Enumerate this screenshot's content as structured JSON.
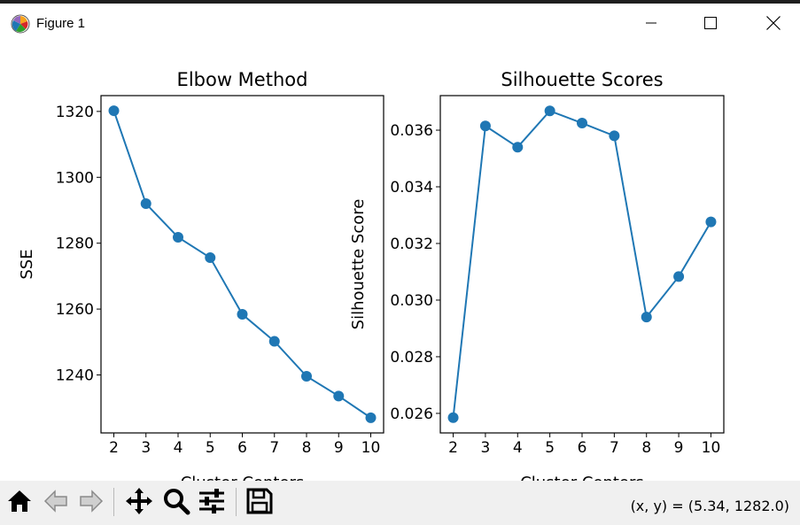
{
  "window": {
    "title": "Figure 1",
    "app_icon": "matplotlib-icon",
    "controls": [
      "minimize-icon",
      "maximize-icon",
      "close-icon"
    ]
  },
  "chart_data": [
    {
      "type": "line",
      "title": "Elbow Method",
      "xlabel": "Cluster Centers",
      "ylabel": "SSE",
      "x": [
        2,
        3,
        4,
        5,
        6,
        7,
        8,
        9,
        10
      ],
      "y": [
        1320.2,
        1292.0,
        1281.8,
        1275.6,
        1258.4,
        1250.2,
        1239.6,
        1233.6,
        1227.0
      ],
      "xticks": [
        "2",
        "3",
        "4",
        "5",
        "6",
        "7",
        "8",
        "9",
        "10"
      ],
      "yticks": [
        "1240",
        "1260",
        "1280",
        "1300",
        "1320"
      ],
      "xlim": [
        1.6,
        10.4
      ],
      "ylim": [
        1222.4,
        1324.8
      ],
      "marker": "circle",
      "color": "#1f77b4",
      "grid": false
    },
    {
      "type": "line",
      "title": "Silhouette Scores",
      "xlabel": "Cluster Centers",
      "ylabel": "Silhouette Score",
      "x": [
        2,
        3,
        4,
        5,
        6,
        7,
        8,
        9,
        10
      ],
      "y": [
        0.02585,
        0.03615,
        0.0354,
        0.03668,
        0.03625,
        0.0358,
        0.0294,
        0.03083,
        0.03276
      ],
      "xticks": [
        "2",
        "3",
        "4",
        "5",
        "6",
        "7",
        "8",
        "9",
        "10"
      ],
      "yticks": [
        "0.026",
        "0.028",
        "0.030",
        "0.032",
        "0.034",
        "0.036"
      ],
      "xlim": [
        1.6,
        10.4
      ],
      "ylim": [
        0.02531,
        0.03722
      ],
      "marker": "circle",
      "color": "#1f77b4",
      "grid": false
    }
  ],
  "toolbar": {
    "buttons": [
      {
        "name": "home-button",
        "icon": "home-icon"
      },
      {
        "name": "back-button",
        "icon": "back-arrow-icon"
      },
      {
        "name": "forward-button",
        "icon": "forward-arrow-icon"
      },
      {
        "name": "pan-button",
        "icon": "move-icon"
      },
      {
        "name": "zoom-button",
        "icon": "magnifier-icon"
      },
      {
        "name": "configure-subplots-button",
        "icon": "sliders-icon"
      },
      {
        "name": "save-button",
        "icon": "floppy-disk-icon"
      }
    ],
    "coordinates": "(x, y) = (5.34, 1282.0)"
  }
}
